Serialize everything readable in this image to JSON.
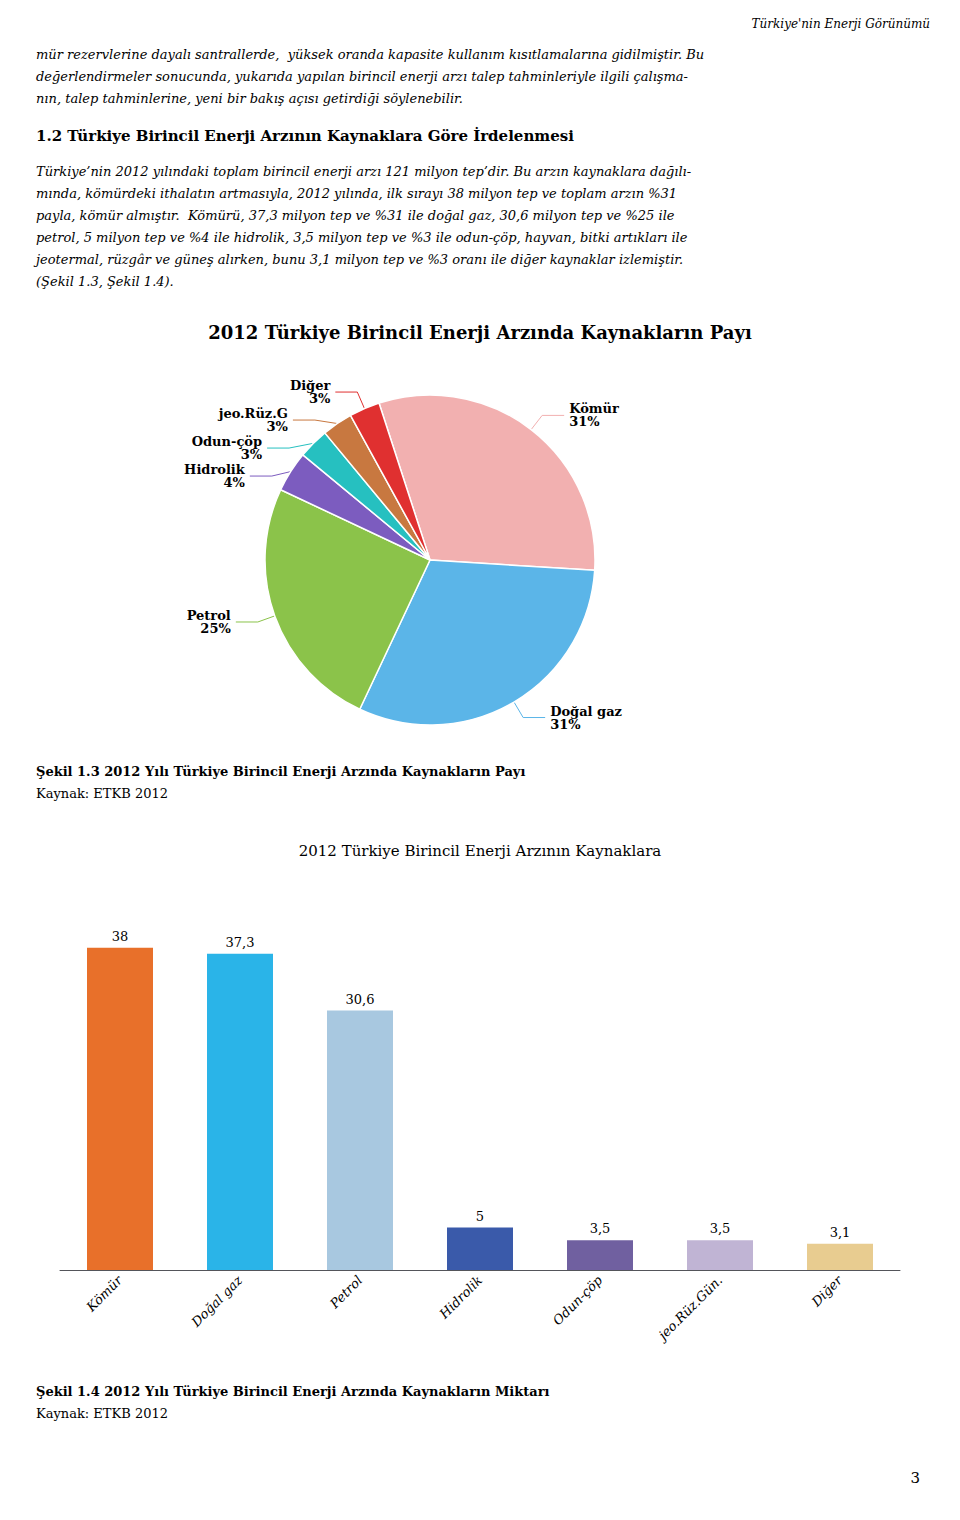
{
  "chart_data": [
    {
      "type": "pie",
      "title": "2012 Türkiye Birincil Enerji Arzında Kaynakların Payı",
      "annotations": [
        "Türkiye'nin Enerji Görünümü",
        "mür rezervlerine dayalı santrallerde,  yüksek oranda kapasite kullanım kısıtlamalarına gidilmiştir. Bu",
        "değerlendirmeler sonucunda, yukarıda yapılan birincil enerji arzı talep tahminleriyle ilgili çalışma-",
        "nın, talep tahminlerine, yeni bir bakış açısı getirdiği söylenebilir.",
        "1.2 Türkiye Birincil Enerji Arzının Kaynaklara Göre İrdelenmesi",
        "Türkiye’nin 2012 yılındaki toplam birincil enerji arzı 121 milyon tep’dir. Bu arzın kaynaklara dağılı-",
        "mında, kömürdeki ithalatın artmasıyla, 2012 yılında, ilk sırayı 38 milyon tep ve toplam arzın %31",
        "payla, kömür almıştır.  Kömürü, 37,3 milyon tep ve %31 ile doğal gaz, 30,6 milyon tep ve %25 ile",
        "petrol, 5 milyon tep ve %4 ile hidrolik, 3,5 milyon tep ve %3 ile odun-çöp, hayvan, bitki artıkları ile",
        "jeotermal, rüzgâr ve güneş alırken, bunu 3,1 milyon tep ve %3 oranı ile diğer kaynaklar izlemiştir.",
        "(Şekil 1.3, Şekil 1.4)."
      ],
      "categories": [
        "Kömür",
        "Doğal gaz",
        "Petrol",
        "Hidrolik",
        "Odun-çöp",
        "jeo.Rüz.G",
        "Diğer"
      ],
      "values": [
        31,
        31,
        25,
        4,
        3,
        3,
        3
      ],
      "value_labels": [
        "31%",
        "31%",
        "25%",
        "4%",
        "3%",
        "3%",
        "3%"
      ],
      "colors": [
        "#f2b0b0",
        "#5bb5e8",
        "#8bc34a",
        "#7c5cbf",
        "#26c0c0",
        "#c87840",
        "#e03030"
      ],
      "data_labels": true,
      "caption": [
        "Şekil 1.3 2012 Yılı Türkiye Birincil Enerji Arzında Kaynakların Payı",
        "Kaynak: ETKB 2012"
      ]
    },
    {
      "type": "bar",
      "title": "2012 Türkiye Birincil Enerji Arzının Kaynaklara",
      "categories": [
        "Kömür",
        "Doğal gaz",
        "Petrol",
        "Hidrolik",
        "Odun-çöp",
        "jeo.Rüz.Gün.",
        "Diğer"
      ],
      "values": [
        38,
        37.3,
        30.6,
        5,
        3.5,
        3.5,
        3.1
      ],
      "value_labels": [
        "38",
        "37,3",
        "30,6",
        "5",
        "3,5",
        "3,5",
        "3,1"
      ],
      "colors": [
        "#e8702a",
        "#2ab4e8",
        "#a8c8e0",
        "#3a5aaa",
        "#7060a0",
        "#c0b4d4",
        "#e8cc90"
      ],
      "ylim": [
        0,
        46
      ],
      "data_labels": true,
      "tick_labels": "x",
      "grid": false,
      "caption": [
        "Şekil 1.4 2012 Yılı Türkiye Birincil Enerji Arzında Kaynakların Miktarı",
        "Kaynak: ETKB 2012"
      ],
      "annotations": [
        "3"
      ]
    }
  ]
}
